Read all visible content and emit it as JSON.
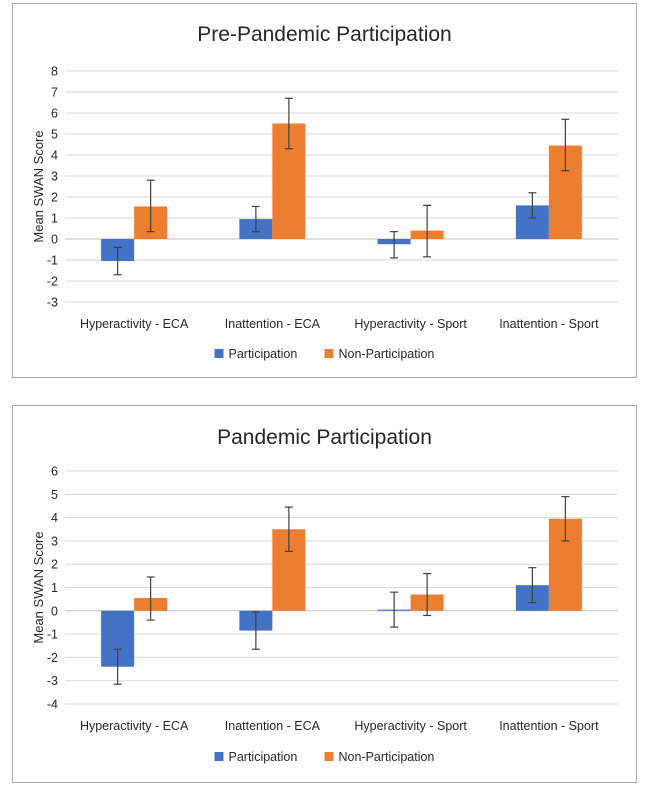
{
  "chart_data": [
    {
      "type": "bar",
      "title": "Pre-Pandemic Participation",
      "xlabel": "",
      "ylabel": "Mean SWAN Score",
      "ylim": [
        -3,
        8
      ],
      "yticks": [
        -3,
        -2,
        -1,
        0,
        1,
        2,
        3,
        4,
        5,
        6,
        7,
        8
      ],
      "grid": true,
      "legend": "bottom",
      "categories": [
        "Hyperactivity - ECA",
        "Inattention - ECA",
        "Hyperactivity - Sport",
        "Inattention - Sport"
      ],
      "series": [
        {
          "name": "Participation",
          "color": "#4472c4",
          "values": [
            -1.05,
            0.95,
            -0.25,
            1.6
          ],
          "error_low": [
            -1.7,
            0.35,
            -0.9,
            1.0
          ],
          "error_high": [
            -0.4,
            1.55,
            0.35,
            2.2
          ]
        },
        {
          "name": "Non-Participation",
          "color": "#ed7d31",
          "values": [
            1.55,
            5.5,
            0.4,
            4.45
          ],
          "error_low": [
            0.35,
            4.3,
            -0.85,
            3.25
          ],
          "error_high": [
            2.8,
            6.7,
            1.6,
            5.7
          ]
        }
      ]
    },
    {
      "type": "bar",
      "title": "Pandemic Participation",
      "xlabel": "",
      "ylabel": "Mean SWAN Score",
      "ylim": [
        -4,
        6
      ],
      "yticks": [
        -4,
        -3,
        -2,
        -1,
        0,
        1,
        2,
        3,
        4,
        5,
        6
      ],
      "grid": true,
      "legend": "bottom",
      "categories": [
        "Hyperactivity - ECA",
        "Inattention - ECA",
        "Hyperactivity - Sport",
        "Inattention - Sport"
      ],
      "series": [
        {
          "name": "Participation",
          "color": "#4472c4",
          "values": [
            -2.4,
            -0.85,
            0.05,
            1.1
          ],
          "error_low": [
            -3.15,
            -1.65,
            -0.7,
            0.35
          ],
          "error_high": [
            -1.65,
            -0.05,
            0.8,
            1.85
          ]
        },
        {
          "name": "Non-Participation",
          "color": "#ed7d31",
          "values": [
            0.55,
            3.5,
            0.7,
            3.95
          ],
          "error_low": [
            -0.4,
            2.55,
            -0.2,
            3.0
          ],
          "error_high": [
            1.45,
            4.45,
            1.6,
            4.9
          ]
        }
      ]
    }
  ]
}
